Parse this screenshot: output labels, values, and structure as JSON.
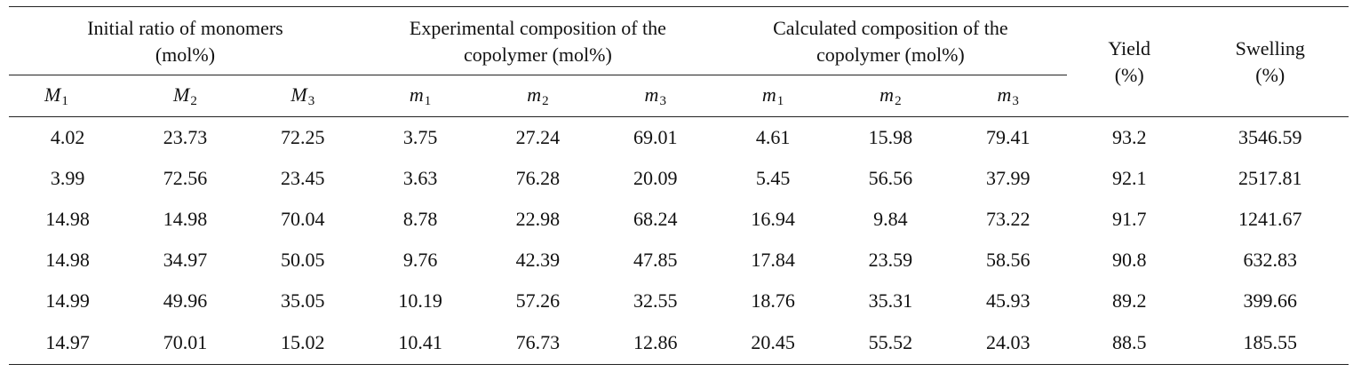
{
  "table": {
    "groups": [
      {
        "line1": "Initial ratio of monomers",
        "line2": "(mol%)"
      },
      {
        "line1": "Experimental composition of the",
        "line2": "copolymer (mol%)"
      },
      {
        "line1": "Calculated composition of the",
        "line2": "copolymer (mol%)"
      }
    ],
    "yield_header": {
      "line1": "Yield",
      "line2": "(%)"
    },
    "swelling_header": {
      "line1": "Swelling",
      "line2": "(%)"
    },
    "subheaders": [
      {
        "base": "M",
        "sub": "1"
      },
      {
        "base": "M",
        "sub": "2"
      },
      {
        "base": "M",
        "sub": "3"
      },
      {
        "base": "m",
        "sub": "1"
      },
      {
        "base": "m",
        "sub": "2"
      },
      {
        "base": "m",
        "sub": "3"
      },
      {
        "base": "m",
        "sub": "1"
      },
      {
        "base": "m",
        "sub": "2"
      },
      {
        "base": "m",
        "sub": "3"
      }
    ],
    "rows": [
      [
        "4.02",
        "23.73",
        "72.25",
        "3.75",
        "27.24",
        "69.01",
        "4.61",
        "15.98",
        "79.41",
        "93.2",
        "3546.59"
      ],
      [
        "3.99",
        "72.56",
        "23.45",
        "3.63",
        "76.28",
        "20.09",
        "5.45",
        "56.56",
        "37.99",
        "92.1",
        "2517.81"
      ],
      [
        "14.98",
        "14.98",
        "70.04",
        "8.78",
        "22.98",
        "68.24",
        "16.94",
        "9.84",
        "73.22",
        "91.7",
        "1241.67"
      ],
      [
        "14.98",
        "34.97",
        "50.05",
        "9.76",
        "42.39",
        "47.85",
        "17.84",
        "23.59",
        "58.56",
        "90.8",
        "632.83"
      ],
      [
        "14.99",
        "49.96",
        "35.05",
        "10.19",
        "57.26",
        "32.55",
        "18.76",
        "35.31",
        "45.93",
        "89.2",
        "399.66"
      ],
      [
        "14.97",
        "70.01",
        "15.02",
        "10.41",
        "76.73",
        "12.86",
        "20.45",
        "55.52",
        "24.03",
        "88.5",
        "185.55"
      ]
    ]
  }
}
